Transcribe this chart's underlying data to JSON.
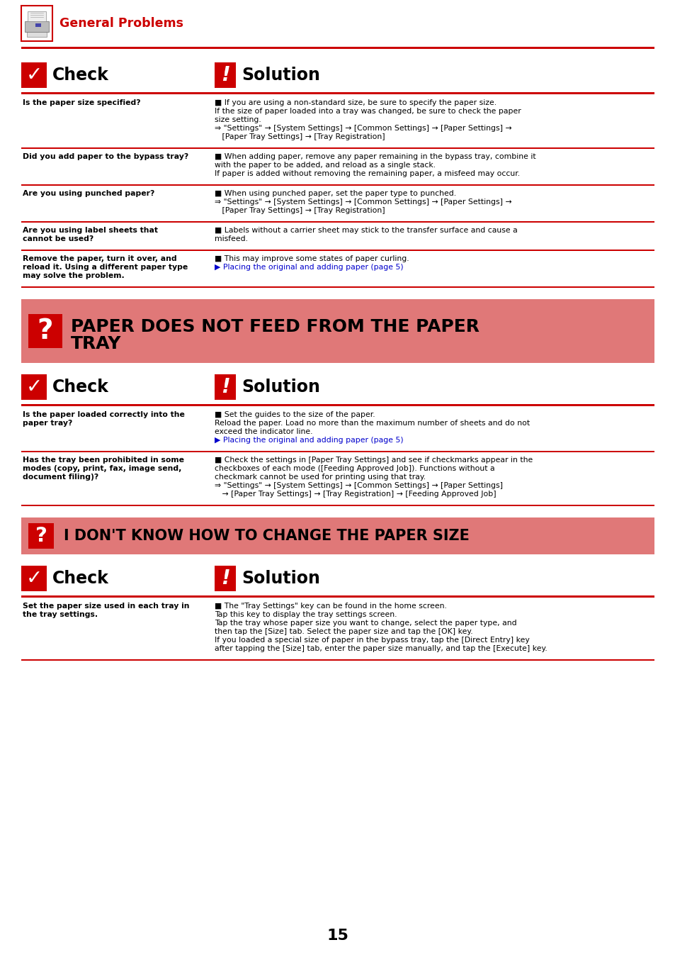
{
  "bg_color": "#ffffff",
  "red": "#cc0000",
  "salmon": "#e07878",
  "blue": "#0000cc",
  "header_label": "General Problems",
  "check_label": "Check",
  "solution_label": "Solution",
  "section1_rows": [
    {
      "check": "Is the paper size specified?",
      "solution_lines": [
        {
          "text": "■ If you are using a non-standard size, be sure to specify the paper size.",
          "color": "black"
        },
        {
          "text": "If the size of paper loaded into a tray was changed, be sure to check the paper",
          "color": "black"
        },
        {
          "text": "size setting.",
          "color": "black"
        },
        {
          "text": "⇒ \"Settings\" → [System Settings] → [Common Settings] → [Paper Settings] →",
          "color": "black"
        },
        {
          "text": "   [Paper Tray Settings] → [Tray Registration]",
          "color": "black"
        }
      ]
    },
    {
      "check": "Did you add paper to the bypass tray?",
      "solution_lines": [
        {
          "text": "■ When adding paper, remove any paper remaining in the bypass tray, combine it",
          "color": "black"
        },
        {
          "text": "with the paper to be added, and reload as a single stack.",
          "color": "black"
        },
        {
          "text": "If paper is added without removing the remaining paper, a misfeed may occur.",
          "color": "black"
        }
      ]
    },
    {
      "check": "Are you using punched paper?",
      "solution_lines": [
        {
          "text": "■ When using punched paper, set the paper type to punched.",
          "color": "black"
        },
        {
          "text": "⇒ \"Settings\" → [System Settings] → [Common Settings] → [Paper Settings] →",
          "color": "black"
        },
        {
          "text": "   [Paper Tray Settings] → [Tray Registration]",
          "color": "black"
        }
      ]
    },
    {
      "check": "Are you using label sheets that\ncannot be used?",
      "solution_lines": [
        {
          "text": "■ Labels without a carrier sheet may stick to the transfer surface and cause a",
          "color": "black"
        },
        {
          "text": "misfeed.",
          "color": "black"
        }
      ]
    },
    {
      "check": "Remove the paper, turn it over, and\nreload it. Using a different paper type\nmay solve the problem.",
      "solution_lines": [
        {
          "text": "■ This may improve some states of paper curling.",
          "color": "black"
        },
        {
          "text": "▶ Placing the original and adding paper (page 5)",
          "color": "#0000cc"
        }
      ]
    }
  ],
  "banner2_title_line1": "PAPER DOES NOT FEED FROM THE PAPER",
  "banner2_title_line2": "TRAY",
  "section2_rows": [
    {
      "check": "Is the paper loaded correctly into the\npaper tray?",
      "solution_lines": [
        {
          "text": "■ Set the guides to the size of the paper.",
          "color": "black"
        },
        {
          "text": "Reload the paper. Load no more than the maximum number of sheets and do not",
          "color": "black"
        },
        {
          "text": "exceed the indicator line.",
          "color": "black"
        },
        {
          "text": "▶ Placing the original and adding paper (page 5)",
          "color": "#0000cc"
        }
      ]
    },
    {
      "check": "Has the tray been prohibited in some\nmodes (copy, print, fax, image send,\ndocument filing)?",
      "solution_lines": [
        {
          "text": "■ Check the settings in [Paper Tray Settings] and see if checkmarks appear in the",
          "color": "black"
        },
        {
          "text": "checkboxes of each mode ([Feeding Approved Job]). Functions without a",
          "color": "black"
        },
        {
          "text": "checkmark cannot be used for printing using that tray.",
          "color": "black"
        },
        {
          "text": "⇒ \"Settings\" → [System Settings] → [Common Settings] → [Paper Settings]",
          "color": "black"
        },
        {
          "text": "   → [Paper Tray Settings] → [Tray Registration] → [Feeding Approved Job]",
          "color": "black"
        }
      ]
    }
  ],
  "banner3_title": "I DON'T KNOW HOW TO CHANGE THE PAPER SIZE",
  "section3_rows": [
    {
      "check": "Set the paper size used in each tray in\nthe tray settings.",
      "solution_lines": [
        {
          "text": "■ The \"Tray Settings\" key can be found in the home screen.",
          "color": "black"
        },
        {
          "text": "Tap this key to display the tray settings screen.",
          "color": "black"
        },
        {
          "text": "Tap the tray whose paper size you want to change, select the paper type, and",
          "color": "black"
        },
        {
          "text": "then tap the [Size] tab. Select the paper size and tap the [OK] key.",
          "color": "black"
        },
        {
          "text": "If you loaded a special size of paper in the bypass tray, tap the [Direct Entry] key",
          "color": "black"
        },
        {
          "text": "after tapping the [Size] tab, enter the paper size manually, and tap the [Execute] key.",
          "color": "black"
        }
      ]
    }
  ],
  "page_number": "15"
}
